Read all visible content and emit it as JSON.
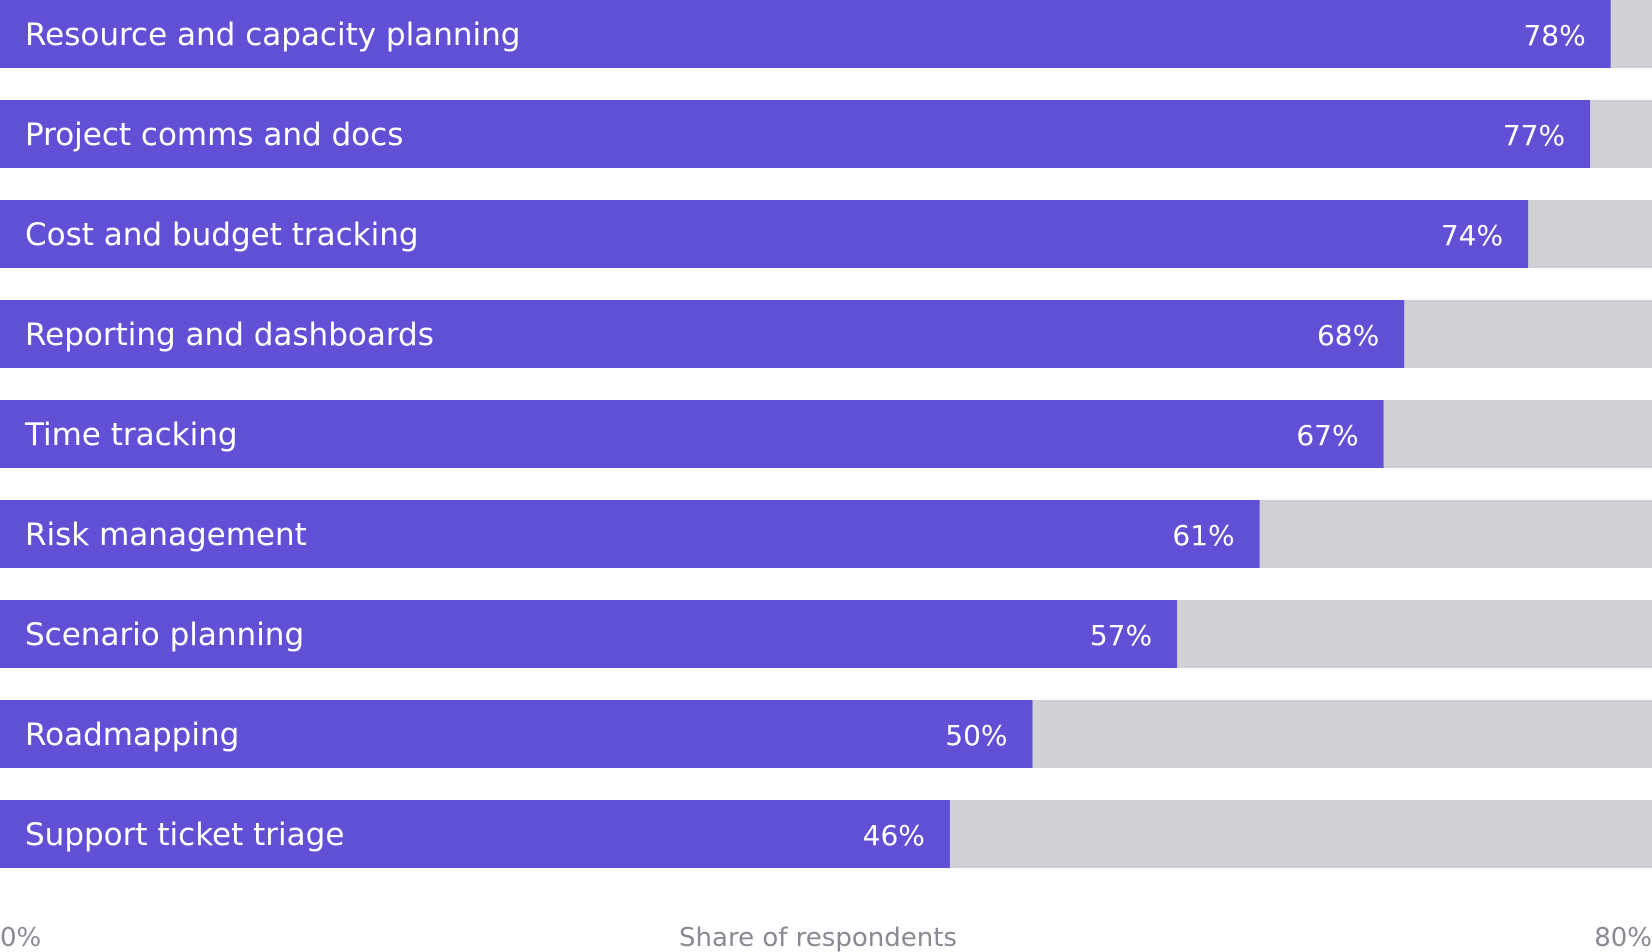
{
  "colors": {
    "bar": "#6050d6",
    "track": "#d0d0d5",
    "label_text": "#ffffff",
    "axis_text": "#8a8a92"
  },
  "chart_data": {
    "type": "bar",
    "orientation": "horizontal",
    "categories": [
      "Resource and capacity planning",
      "Project comms and docs",
      "Cost and budget tracking",
      "Reporting and dashboards",
      "Time tracking",
      "Risk management",
      "Scenario planning",
      "Roadmapping",
      "Support ticket triage"
    ],
    "values": [
      78,
      77,
      74,
      68,
      67,
      61,
      57,
      50,
      46
    ],
    "value_labels": [
      "78%",
      "77%",
      "74%",
      "68%",
      "67%",
      "61%",
      "57%",
      "50%",
      "46%"
    ],
    "xlabel": "Share of respondents",
    "xlim": [
      0,
      80
    ],
    "x_tick_labels": [
      "0%",
      "80%"
    ],
    "grid": false,
    "legend": "none"
  }
}
